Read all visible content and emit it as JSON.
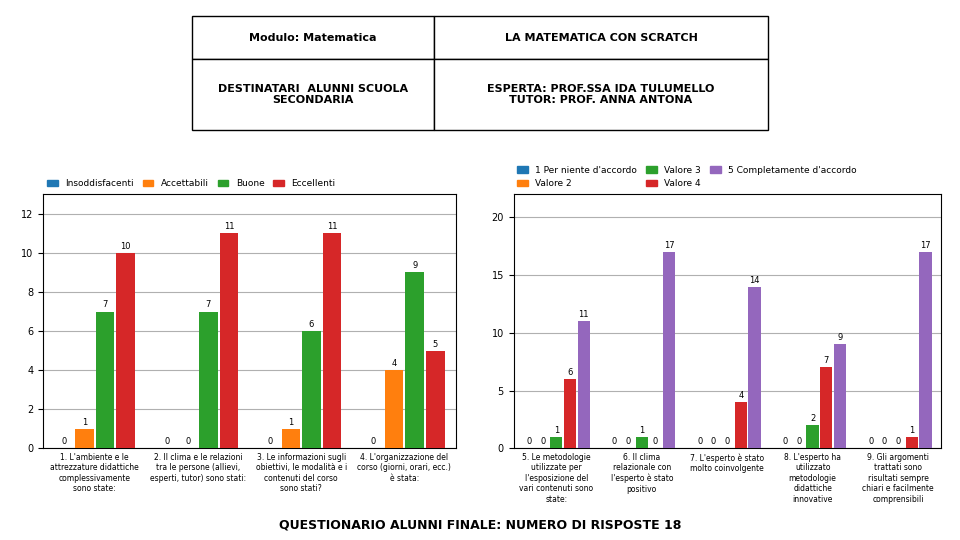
{
  "chart_data": [
    {
      "type": "bar",
      "categories": [
        "1. L'ambiente e le\nattrezzature didattiche\ncomplessivamente\nsono state:",
        "2. Il clima e le relazioni\ntra le persone (allievi,\nesperti, tutor) sono stati:",
        "3. Le informazioni sugli\nobiettivi, le modalità e i\ncontenuti del corso\nsono stati?",
        "4. L'organizzazione del\ncorso (giorni, orari, ecc.)\nè stata:"
      ],
      "series": [
        {
          "name": "Insoddisfacenti",
          "values": [
            0,
            0,
            0,
            0
          ]
        },
        {
          "name": "Accettabili",
          "values": [
            1,
            0,
            1,
            4
          ]
        },
        {
          "name": "Buone",
          "values": [
            7,
            7,
            6,
            9
          ]
        },
        {
          "name": "Eccellenti",
          "values": [
            10,
            11,
            11,
            5
          ]
        }
      ],
      "ylim": [
        0,
        13
      ],
      "yticks": [
        0,
        2,
        4,
        6,
        8,
        10,
        12
      ],
      "grid": true,
      "legend": "upper left",
      "data_labels": true,
      "annotations": [
        "Modulo: Matematica",
        "LA MATEMATICA CON SCRATCH",
        "DESTINATARI  ALUNNI SCUOLA\nSECONDARIA",
        "ESPERTA: PROF.SSA IDA TULUMELLO\nTUTOR: PROF. ANNA ANTONA",
        "QUESTIONARIO ALUNNI FINALE: NUMERO DI RISPOSTE 18"
      ]
    },
    {
      "type": "bar",
      "categories": [
        "5. Le metodologie\nutilizzate per\nl'esposizione del\nvari contenuti sono\nstate:",
        "6. Il clima\nrelazionale con\nl'esperto è stato\npositivo",
        "7. L'esperto è stato\nmolto coinvolgente",
        "8. L'esperto ha\nutilizzato\nmetodologie\ndidattiche\ninnovative",
        "9. Gli argomenti\ntrattati sono\nrisultati sempre\nchiari e facilmente\ncomprensibili"
      ],
      "series": [
        {
          "name": "1 Per niente d'accordo",
          "values": [
            0,
            0,
            0,
            0,
            0
          ]
        },
        {
          "name": "Valore 2",
          "values": [
            0,
            0,
            0,
            0,
            0
          ]
        },
        {
          "name": "Valore 3",
          "values": [
            1,
            1,
            0,
            2,
            0
          ]
        },
        {
          "name": "Valore 4",
          "values": [
            6,
            0,
            4,
            7,
            1
          ]
        },
        {
          "name": "5 Completamente d'accordo",
          "values": [
            11,
            17,
            14,
            9,
            17
          ]
        }
      ],
      "ylim": [
        0,
        22
      ],
      "yticks": [
        0,
        5,
        10,
        15,
        20
      ],
      "grid": true,
      "legend": "upper left",
      "data_labels": true
    }
  ]
}
